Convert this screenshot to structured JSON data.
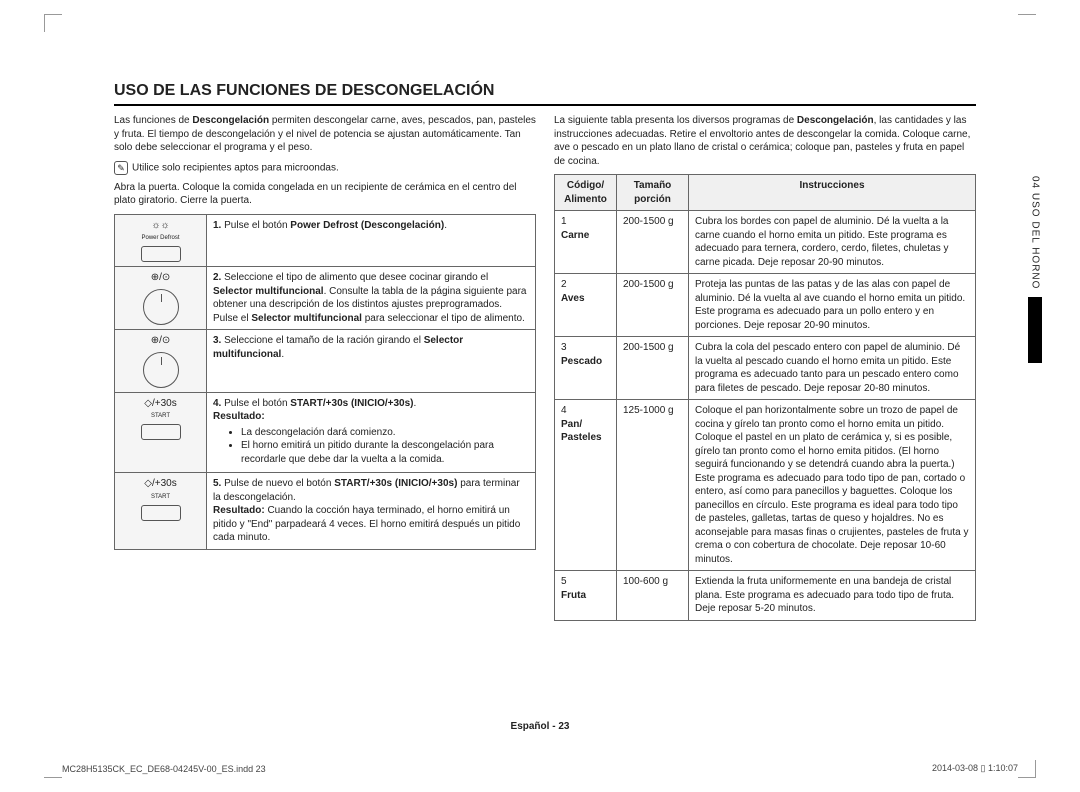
{
  "title": "USO DE LAS FUNCIONES DE DESCONGELACIÓN",
  "intro1_a": "Las funciones de ",
  "intro1_b": "Descongelación",
  "intro1_c": " permiten descongelar carne, aves, pescados, pan, pasteles y fruta. El tiempo de descongelación y el nivel de potencia se ajustan automáticamente. Tan solo debe seleccionar el programa y el peso.",
  "note": "Utilice solo recipientes aptos para microondas.",
  "intro2": "Abra la puerta. Coloque la comida congelada en un recipiente de cerámica en el centro del plato giratorio. Cierre la puerta.",
  "steps": [
    {
      "icon_top": "☼☼",
      "icon_lbl": "Power Defrost",
      "shape": "btn",
      "num": "1.",
      "text_a": "Pulse el botón ",
      "text_b": "Power Defrost (Descongelación)",
      "text_c": "."
    },
    {
      "icon_top": "⊕/⊙",
      "icon_marks": "- · +",
      "shape": "dial",
      "num": "2.",
      "text_a": "Seleccione el tipo de alimento que desee cocinar girando el ",
      "text_b": "Selector multifuncional",
      "text_c": ". Consulte la tabla de la página siguiente para obtener una descripción de los distintos ajustes preprogramados. Pulse el ",
      "text_d": "Selector multifuncional",
      "text_e": " para seleccionar el tipo de alimento."
    },
    {
      "icon_top": "⊕/⊙",
      "icon_marks": "- · +",
      "shape": "dial",
      "num": "3.",
      "text_a": "Seleccione el tamaño de la ración girando el ",
      "text_b": "Selector multifuncional",
      "text_c": "."
    },
    {
      "icon_top": "◇/+30s",
      "icon_lbl": "START",
      "shape": "btn",
      "num": "4.",
      "text_a": "Pulse el botón ",
      "text_b": "START/+30s (INICIO/+30s)",
      "text_c": ".",
      "result_label": "Resultado:",
      "bullets": [
        "La descongelación dará comienzo.",
        "El horno emitirá un pitido durante la descongelación para recordarle que debe dar la vuelta a la comida."
      ]
    },
    {
      "icon_top": "◇/+30s",
      "icon_lbl": "START",
      "shape": "btn",
      "num": "5.",
      "text_a": "Pulse de nuevo el botón ",
      "text_b": "START/+30s (INICIO/+30s)",
      "text_c": " para terminar la descongelación.",
      "result_label": "Resultado:",
      "result_text": "Cuando la cocción haya terminado, el horno emitirá un pitido y \"End\" parpadeará 4 veces. El horno emitirá después un pitido cada minuto."
    }
  ],
  "right_intro_a": "La siguiente tabla presenta los diversos programas de ",
  "right_intro_b": "Descongelación",
  "right_intro_c": ", las cantidades y las instrucciones adecuadas. Retire el envoltorio antes de descongelar la comida. Coloque carne, ave o pescado en un plato llano de cristal o cerámica; coloque pan, pasteles y fruta en papel de cocina.",
  "defrost_headers": {
    "code": "Código/ Alimento",
    "size": "Tamaño porción",
    "instr": "Instrucciones"
  },
  "defrost_rows": [
    {
      "code": "1",
      "name": "Carne",
      "size": "200-1500 g",
      "instr": "Cubra los bordes con papel de aluminio. Dé la vuelta a la carne cuando el horno emita un pitido. Este programa es adecuado para ternera, cordero, cerdo, filetes, chuletas y carne picada. Deje reposar 20-90 minutos."
    },
    {
      "code": "2",
      "name": "Aves",
      "size": "200-1500 g",
      "instr": "Proteja las puntas de las patas y de las alas con papel de aluminio. Dé la vuelta al ave cuando el horno emita un pitido. Este programa es adecuado para un pollo entero y en porciones. Deje reposar 20-90 minutos."
    },
    {
      "code": "3",
      "name": "Pescado",
      "size": "200-1500 g",
      "instr": "Cubra la cola del pescado entero con papel de aluminio. Dé la vuelta al pescado cuando el horno emita un pitido. Este programa es adecuado tanto para un pescado entero como para filetes de pescado. Deje reposar 20-80 minutos."
    },
    {
      "code": "4",
      "name": "Pan/ Pasteles",
      "size": "125-1000 g",
      "instr": "Coloque el pan horizontalmente sobre un trozo de papel de cocina y gírelo tan pronto como el horno emita un pitido. Coloque el pastel en un plato de cerámica y, si es posible, gírelo tan pronto como el horno emita pitidos. (El horno seguirá funcionando y se detendrá cuando abra la puerta.) Este programa es adecuado para todo tipo de pan, cortado o entero, así como para panecillos y baguettes. Coloque los panecillos en círculo. Este programa es ideal para todo tipo de pasteles, galletas, tartas de queso y hojaldres. No es aconsejable para masas finas o crujientes, pasteles de fruta y crema o con cobertura de chocolate. Deje reposar 10-60 minutos."
    },
    {
      "code": "5",
      "name": "Fruta",
      "size": "100-600 g",
      "instr": "Extienda la fruta uniformemente en una bandeja de cristal plana. Este programa es adecuado para todo tipo de fruta. Deje reposar 5-20 minutos."
    }
  ],
  "side_label": "04  USO DEL HORNO",
  "footer_center_a": "Español - ",
  "footer_center_b": "23",
  "footer_left": "MC28H5135CK_EC_DE68-04245V-00_ES.indd   23",
  "footer_right": "2014-03-08   ▯ 1:10:07"
}
